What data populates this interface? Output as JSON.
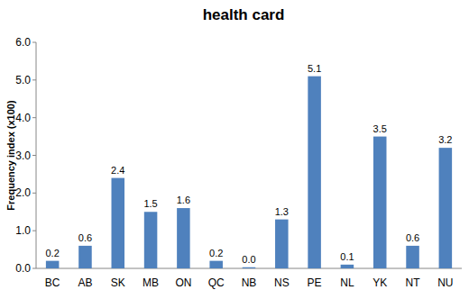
{
  "chart_data": {
    "type": "bar",
    "title": "health card",
    "y_label": "Frequency index (x100)",
    "categories": [
      "BC",
      "AB",
      "SK",
      "MB",
      "ON",
      "QC",
      "NB",
      "NS",
      "PE",
      "NL",
      "YK",
      "NT",
      "NU"
    ],
    "values": [
      0.2,
      0.6,
      2.4,
      1.5,
      1.6,
      0.2,
      0.03,
      1.3,
      5.1,
      0.1,
      3.5,
      0.6,
      3.2
    ],
    "value_labels": [
      "0.2",
      "0.6",
      "2.4",
      "1.5",
      "1.6",
      "0.2",
      "0.0",
      "1.3",
      "5.1",
      "0.1",
      "3.5",
      "0.6",
      "3.2"
    ],
    "color": "#4f81bd",
    "data_labels": true,
    "grid": false,
    "ylim": [
      0,
      6
    ],
    "yticks": [
      {
        "value": 0,
        "label": "0.0"
      },
      {
        "value": 1,
        "label": "1.0"
      },
      {
        "value": 2,
        "label": "2.0"
      },
      {
        "value": 3,
        "label": "3.0"
      },
      {
        "value": 4,
        "label": "4.0"
      },
      {
        "value": 5,
        "label": "5.0"
      },
      {
        "value": 6,
        "label": "6.0"
      }
    ]
  }
}
